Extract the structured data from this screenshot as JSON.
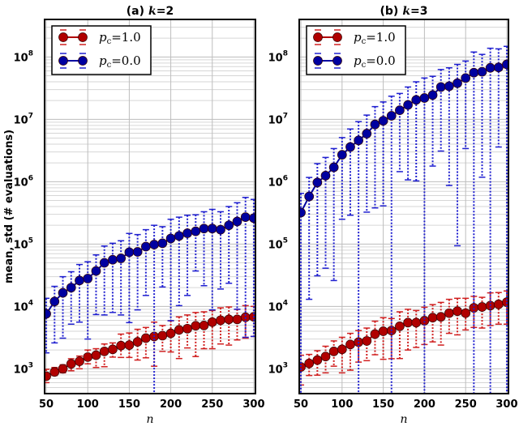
{
  "chart_data": [
    {
      "type": "line",
      "title_prefix": "(a)",
      "title_var": "k",
      "title_eq": "=2",
      "xlabel": "n",
      "ylabel": "mean, std (# evaluations)",
      "xlim": [
        48,
        302
      ],
      "ylim": [
        400,
        400000000
      ],
      "yscale": "log",
      "grid": true,
      "legend_placement": "top-left",
      "xticks": [
        "50",
        "100",
        "150",
        "200",
        "250",
        "300"
      ],
      "yticks": [
        {
          "base": "10",
          "exp": "3"
        },
        {
          "base": "10",
          "exp": "4"
        },
        {
          "base": "10",
          "exp": "5"
        },
        {
          "base": "10",
          "exp": "6"
        },
        {
          "base": "10",
          "exp": "7"
        },
        {
          "base": "10",
          "exp": "8"
        }
      ],
      "x": [
        50,
        60,
        70,
        80,
        90,
        100,
        110,
        120,
        130,
        140,
        150,
        160,
        170,
        180,
        190,
        200,
        210,
        220,
        230,
        240,
        250,
        260,
        270,
        280,
        290,
        300
      ],
      "series": [
        {
          "name_var": "p",
          "name_sub": "c",
          "name_val": "=1.0",
          "color": "#b00000",
          "err_color": "#d02020",
          "mean": [
            760,
            890,
            1000,
            1200,
            1320,
            1540,
            1650,
            1900,
            2050,
            2350,
            2400,
            2700,
            3100,
            3300,
            3400,
            3700,
            4200,
            4400,
            4900,
            4950,
            5600,
            6000,
            6200,
            6200,
            6700,
            6800
          ],
          "upper": [
            980,
            1050,
            1160,
            1450,
            1600,
            2000,
            2100,
            2500,
            2600,
            3600,
            3750,
            4300,
            4600,
            5600,
            4950,
            5900,
            6800,
            7300,
            8000,
            8200,
            8600,
            9500,
            9800,
            9000,
            10300,
            10000
          ],
          "lower": [
            600,
            780,
            860,
            930,
            1000,
            1200,
            1050,
            1080,
            1540,
            1520,
            1520,
            1380,
            1500,
            1100,
            1900,
            1860,
            1460,
            2160,
            1570,
            2100,
            2100,
            2500,
            2400,
            2900,
            3100,
            3300
          ]
        },
        {
          "name_var": "p",
          "name_sub": "c",
          "name_val": "=0.0",
          "color": "#0000a0",
          "err_color": "#2020d0",
          "mean": [
            7600,
            12000,
            16500,
            20000,
            26000,
            28000,
            37000,
            50000,
            56000,
            59000,
            74000,
            75000,
            91000,
            98000,
            103000,
            123000,
            135000,
            149000,
            160000,
            177000,
            177000,
            170000,
            200000,
            230000,
            270000,
            260000
          ],
          "upper": [
            13500,
            21000,
            30000,
            36000,
            47000,
            52000,
            67000,
            93000,
            103000,
            113000,
            148000,
            142000,
            170000,
            200000,
            190000,
            250000,
            270000,
            290000,
            295000,
            330000,
            360000,
            330000,
            400000,
            460000,
            560000,
            520000
          ],
          "lower": [
            1800,
            2600,
            3100,
            5200,
            5600,
            3000,
            7400,
            7300,
            8000,
            7300,
            5500,
            8800,
            15000,
            1,
            20500,
            5900,
            10300,
            15000,
            37000,
            21500,
            8800,
            19000,
            23500,
            9000,
            3200,
            3300
          ]
        }
      ]
    },
    {
      "type": "line",
      "title_prefix": "(b)",
      "title_var": "k",
      "title_eq": "=3",
      "xlabel": "n",
      "ylabel": "",
      "xlim": [
        48,
        302
      ],
      "ylim": [
        400,
        400000000
      ],
      "yscale": "log",
      "grid": true,
      "legend_placement": "top-left",
      "xticks": [
        "50",
        "100",
        "150",
        "200",
        "250",
        "300"
      ],
      "yticks": [
        {
          "base": "10",
          "exp": "3"
        },
        {
          "base": "10",
          "exp": "4"
        },
        {
          "base": "10",
          "exp": "5"
        },
        {
          "base": "10",
          "exp": "6"
        },
        {
          "base": "10",
          "exp": "7"
        },
        {
          "base": "10",
          "exp": "8"
        }
      ],
      "x": [
        50,
        60,
        70,
        80,
        90,
        100,
        110,
        120,
        130,
        140,
        150,
        160,
        170,
        180,
        190,
        200,
        210,
        220,
        230,
        240,
        250,
        260,
        270,
        280,
        290,
        300
      ],
      "series": [
        {
          "name_var": "p",
          "name_sub": "c",
          "name_val": "=1.0",
          "color": "#b00000",
          "err_color": "#d02020",
          "mean": [
            1070,
            1220,
            1380,
            1570,
            1900,
            2050,
            2450,
            2670,
            2800,
            3600,
            4000,
            4100,
            4800,
            5500,
            5500,
            5900,
            6600,
            6800,
            7800,
            8400,
            7800,
            9500,
            9800,
            10300,
            10800,
            11700
          ],
          "upper": [
            1650,
            1700,
            1950,
            2300,
            2800,
            3200,
            3700,
            4100,
            4500,
            5800,
            6600,
            6400,
            8200,
            9000,
            8600,
            9700,
            10700,
            11600,
            13000,
            13500,
            13500,
            14500,
            14000,
            16500,
            16700,
            17700
          ],
          "lower": [
            550,
            780,
            790,
            860,
            1100,
            860,
            950,
            1280,
            1350,
            1680,
            1420,
            1450,
            1460,
            2000,
            2200,
            2450,
            2700,
            2400,
            3700,
            3500,
            4200,
            4600,
            4500,
            4950,
            5200,
            5200
          ]
        },
        {
          "name_var": "p",
          "name_sub": "c",
          "name_val": "=0.0",
          "color": "#0000a0",
          "err_color": "#2020d0",
          "mean": [
            320000,
            580000,
            970000,
            1250000,
            1700000,
            2700000,
            3600000,
            4600000,
            5900000,
            8300000,
            9500000,
            11400000,
            14000000,
            17000000,
            20500000,
            22000000,
            24500000,
            33000000,
            34000000,
            38000000,
            46000000,
            56000000,
            58000000,
            67000000,
            68000000,
            76000000
          ],
          "upper": [
            650000,
            1170000,
            1950000,
            2450000,
            3400000,
            5100000,
            7000000,
            9200000,
            11700000,
            16000000,
            19000000,
            23500000,
            26000000,
            33000000,
            40000000,
            46000000,
            49000000,
            63000000,
            67000000,
            76000000,
            86000000,
            120000000,
            110000000,
            138000000,
            135000000,
            148000000
          ],
          "lower": [
            1,
            13000,
            31000,
            41000,
            26000,
            250000,
            290000,
            1,
            325000,
            380000,
            410000,
            1,
            1450000,
            1070000,
            1030000,
            1,
            1780000,
            3100000,
            870000,
            94000,
            3400000,
            1,
            1180000,
            1,
            3600000,
            1
          ]
        }
      ]
    }
  ]
}
